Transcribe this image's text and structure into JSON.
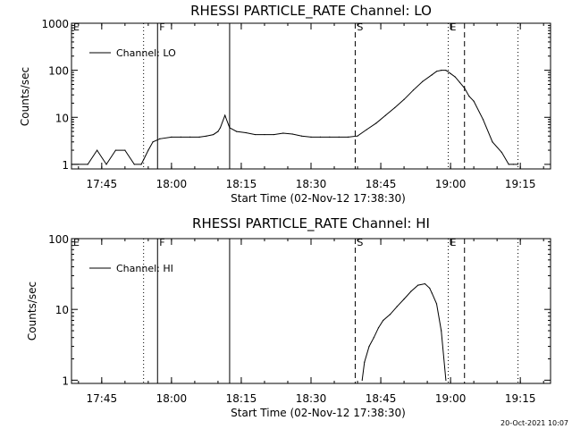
{
  "chart_data": [
    {
      "type": "line",
      "title": "RHESSI PARTICLE_RATE Channel: LO",
      "xlabel": "Start Time (02-Nov-12 17:38:30)",
      "ylabel": "Counts/sec",
      "y_scale": "log",
      "ylim": [
        0.8,
        1000
      ],
      "y_ticks": [
        "1",
        "10",
        "100",
        "1000"
      ],
      "x_ticks": [
        "17:45",
        "18:00",
        "18:15",
        "18:30",
        "18:45",
        "19:00",
        "19:15"
      ],
      "legend": "Channel: LO",
      "legend_placement": "top-left",
      "grid": false,
      "markers": [
        {
          "label": "E",
          "time": "17:38:30",
          "style": "label-only"
        },
        {
          "label": "",
          "time": "17:54:00",
          "style": "dotted"
        },
        {
          "label": "F",
          "time": "17:57:00",
          "style": "solid"
        },
        {
          "label": "",
          "time": "18:12:30",
          "style": "solid"
        },
        {
          "label": "S",
          "time": "18:39:30",
          "style": "dashed"
        },
        {
          "label": "E",
          "time": "18:59:30",
          "style": "dotted"
        },
        {
          "label": "",
          "time": "19:03:00",
          "style": "dashed"
        },
        {
          "label": "",
          "time": "19:14:30",
          "style": "dotted"
        }
      ],
      "series": [
        {
          "name": "Channel: LO",
          "x": [
            "17:38:30",
            "17:40:00",
            "17:42:00",
            "17:44:00",
            "17:46:00",
            "17:48:00",
            "17:50:00",
            "17:52:00",
            "17:53:30",
            "17:55:00",
            "17:56:00",
            "17:57:30",
            "18:00:00",
            "18:02:00",
            "18:04:00",
            "18:06:00",
            "18:07:30",
            "18:09:00",
            "18:10:00",
            "18:10:30",
            "18:11:30",
            "18:12:30",
            "18:14:00",
            "18:16:00",
            "18:18:00",
            "18:20:00",
            "18:22:00",
            "18:24:00",
            "18:26:00",
            "18:28:00",
            "18:30:00",
            "18:32:00",
            "18:34:00",
            "18:36:00",
            "18:38:00",
            "18:40:00",
            "18:42:00",
            "18:44:00",
            "18:46:00",
            "18:48:00",
            "18:50:00",
            "18:52:00",
            "18:54:00",
            "18:56:00",
            "18:57:00",
            "18:58:00",
            "18:59:00",
            "19:00:00",
            "19:01:00",
            "19:02:00",
            "19:03:00",
            "19:04:00",
            "19:05:00",
            "19:07:00",
            "19:09:00",
            "19:11:00",
            "19:12:30",
            "19:13:30",
            "19:14:30"
          ],
          "y": [
            1,
            1,
            1,
            2,
            1,
            2,
            2,
            1,
            1,
            2,
            3,
            3.5,
            3.8,
            3.8,
            3.8,
            3.8,
            4,
            4.3,
            5,
            6,
            11,
            6,
            5,
            4.7,
            4.3,
            4.3,
            4.3,
            4.6,
            4.4,
            4,
            3.8,
            3.8,
            3.8,
            3.8,
            3.8,
            4,
            5.5,
            7.5,
            11,
            16,
            24,
            38,
            58,
            80,
            95,
            100,
            100,
            85,
            72,
            55,
            42,
            28,
            22,
            9,
            3,
            1.8,
            1,
            1,
            1
          ]
        }
      ]
    },
    {
      "type": "line",
      "title": "RHESSI PARTICLE_RATE Channel: HI",
      "xlabel": "Start Time (02-Nov-12 17:38:30)",
      "ylabel": "Counts/sec",
      "y_scale": "log",
      "ylim": [
        0.9,
        100
      ],
      "y_ticks": [
        "1",
        "10",
        "100"
      ],
      "x_ticks": [
        "17:45",
        "18:00",
        "18:15",
        "18:30",
        "18:45",
        "19:00",
        "19:15"
      ],
      "legend": "Channel: HI",
      "legend_placement": "top-left",
      "grid": false,
      "markers": [
        {
          "label": "E",
          "time": "17:38:30",
          "style": "label-only"
        },
        {
          "label": "",
          "time": "17:54:00",
          "style": "dotted"
        },
        {
          "label": "F",
          "time": "17:57:00",
          "style": "solid"
        },
        {
          "label": "",
          "time": "18:12:30",
          "style": "solid"
        },
        {
          "label": "S",
          "time": "18:39:30",
          "style": "dashed"
        },
        {
          "label": "E",
          "time": "18:59:30",
          "style": "dotted"
        },
        {
          "label": "",
          "time": "19:03:00",
          "style": "dashed"
        },
        {
          "label": "",
          "time": "19:14:30",
          "style": "dotted"
        }
      ],
      "series": [
        {
          "name": "Channel: HI",
          "x": [
            "18:41:00",
            "18:41:30",
            "18:42:30",
            "18:43:30",
            "18:44:30",
            "18:45:30",
            "18:47:00",
            "18:48:30",
            "18:50:00",
            "18:51:30",
            "18:53:00",
            "18:54:30",
            "18:55:30",
            "18:56:00",
            "18:57:00",
            "18:58:00",
            "18:59:00"
          ],
          "y": [
            1,
            1.8,
            3,
            4,
            5.5,
            7,
            8.5,
            11,
            14,
            18,
            22,
            23,
            20,
            17,
            12,
            5,
            1
          ]
        }
      ]
    }
  ],
  "timestamp": "20-Oct-2021 10:07"
}
